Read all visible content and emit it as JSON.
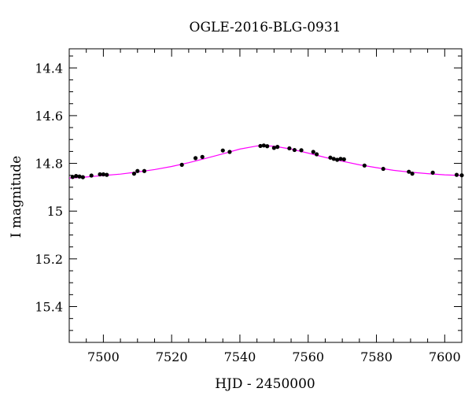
{
  "chart_data": {
    "type": "scatter",
    "title": "OGLE-2016-BLG-0931",
    "xlabel": "HJD - 2450000",
    "ylabel": "I magnitude",
    "xlim": [
      7490,
      7605
    ],
    "ylim": [
      15.55,
      14.32
    ],
    "y_inverted": true,
    "grid": false,
    "x_ticks": [
      7500,
      7520,
      7540,
      7560,
      7580,
      7600
    ],
    "x_tick_labels": [
      "7500",
      "7520",
      "7540",
      "7560",
      "7580",
      "7600"
    ],
    "y_ticks": [
      14.4,
      14.6,
      14.8,
      15.0,
      15.2,
      15.4
    ],
    "y_tick_labels": [
      "14.4",
      "14.6",
      "14.8",
      "15",
      "15.2",
      "15.4"
    ],
    "series": [
      {
        "kind": "points",
        "color": "#000000",
        "x": [
          7491.0,
          7492.0,
          7493.0,
          7494.0,
          7496.5,
          7499.0,
          7500.0,
          7501.0,
          7509.0,
          7510.0,
          7512.0,
          7523.0,
          7527.0,
          7529.0,
          7535.0,
          7537.0,
          7546.0,
          7547.0,
          7548.0,
          7550.0,
          7551.0,
          7554.5,
          7556.0,
          7558.0,
          7561.5,
          7562.5,
          7566.5,
          7567.5,
          7568.5,
          7569.5,
          7570.5,
          7576.5,
          7582.0,
          7589.5,
          7590.5,
          7596.5,
          7603.5,
          7605.0
        ],
        "y": [
          14.857,
          14.853,
          14.855,
          14.858,
          14.851,
          14.846,
          14.846,
          14.848,
          14.843,
          14.832,
          14.832,
          14.806,
          14.778,
          14.773,
          14.746,
          14.752,
          14.727,
          14.725,
          14.728,
          14.735,
          14.731,
          14.737,
          14.744,
          14.745,
          14.752,
          14.762,
          14.776,
          14.781,
          14.785,
          14.781,
          14.783,
          14.809,
          14.823,
          14.835,
          14.843,
          14.839,
          14.848,
          14.85
        ]
      },
      {
        "kind": "model-curve",
        "color": "#ff00ff",
        "x": [
          7490,
          7495,
          7500,
          7505,
          7510,
          7515,
          7520,
          7525,
          7530,
          7535,
          7540,
          7545,
          7547,
          7550,
          7555,
          7560,
          7565,
          7570,
          7575,
          7580,
          7585,
          7590,
          7595,
          7600,
          7605
        ],
        "y": [
          14.862,
          14.857,
          14.851,
          14.845,
          14.836,
          14.826,
          14.813,
          14.797,
          14.779,
          14.76,
          14.74,
          14.727,
          14.726,
          14.728,
          14.74,
          14.757,
          14.775,
          14.791,
          14.806,
          14.818,
          14.829,
          14.837,
          14.843,
          14.848,
          14.851
        ]
      }
    ]
  }
}
